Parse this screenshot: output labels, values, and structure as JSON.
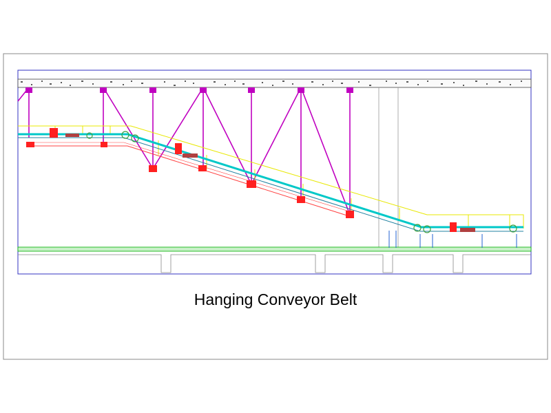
{
  "title": "Hanging Conveyor Belt"
}
